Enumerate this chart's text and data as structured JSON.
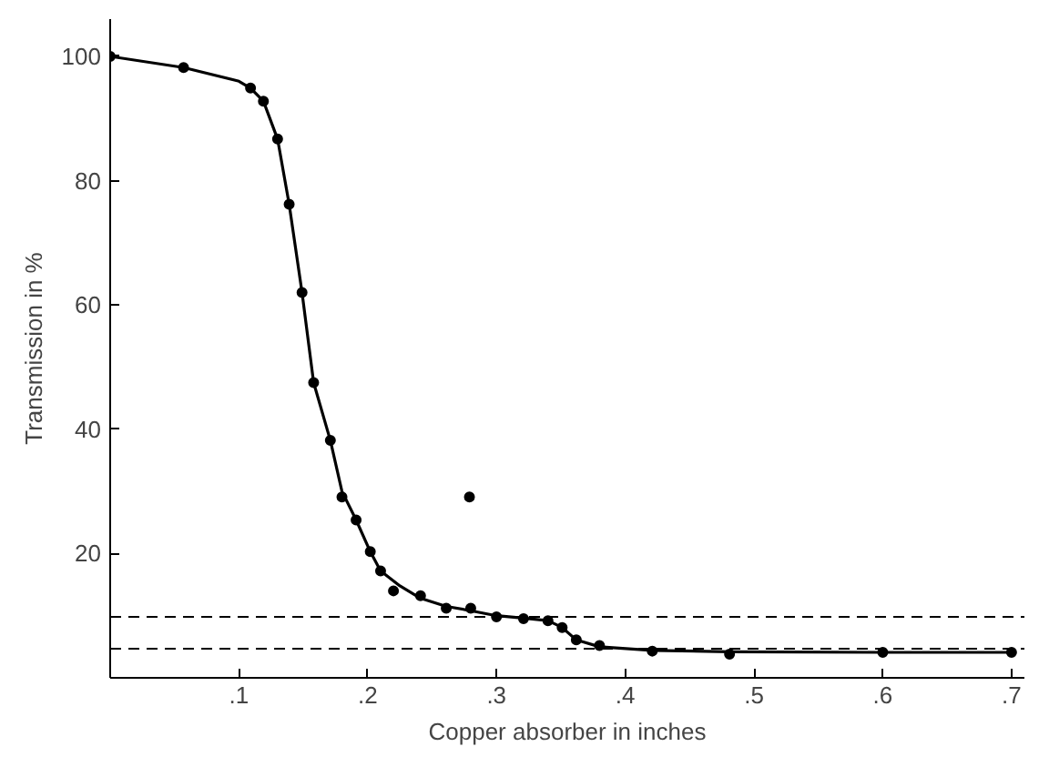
{
  "chart_data": {
    "type": "scatter",
    "xlabel": "Copper absorber in inches",
    "ylabel": "Transmission in %",
    "xlim": [
      0,
      0.71
    ],
    "ylim": [
      0,
      106
    ],
    "xticks": [
      {
        "value": 0.1,
        "label": ".1"
      },
      {
        "value": 0.2,
        "label": ".2"
      },
      {
        "value": 0.3,
        "label": ".3"
      },
      {
        "value": 0.4,
        "label": ".4"
      },
      {
        "value": 0.5,
        "label": ".5"
      },
      {
        "value": 0.6,
        "label": ".6"
      },
      {
        "value": 0.7,
        "label": ".7"
      }
    ],
    "yticks": [
      20,
      40,
      60,
      80,
      100
    ],
    "grid": false,
    "marker": "circle",
    "series": [
      {
        "color": "#000000",
        "x": [
          0,
          0.057,
          0.109,
          0.119,
          0.13,
          0.139,
          0.149,
          0.158,
          0.171,
          0.18,
          0.191,
          0.202,
          0.21,
          0.22,
          0.241,
          0.261,
          0.279,
          0.28,
          0.3,
          0.321,
          0.34,
          0.351,
          0.362,
          0.38,
          0.421,
          0.481,
          0.6,
          0.7
        ],
        "values": [
          100,
          98.2,
          94.9,
          92.8,
          86.7,
          76.2,
          62,
          47.5,
          38.2,
          29.1,
          25.4,
          20.3,
          17.2,
          14,
          13.2,
          11.2,
          29.1,
          11.2,
          9.8,
          9.5,
          9.2,
          8.1,
          6.1,
          5.2,
          4.3,
          3.8,
          4.1,
          4.1
        ]
      },
      {
        "type": "line",
        "color": "#000000",
        "marker": "none",
        "x": [
          0,
          0.057,
          0.1,
          0.109,
          0.119,
          0.13,
          0.139,
          0.149,
          0.158,
          0.171,
          0.18,
          0.191,
          0.202,
          0.21,
          0.225,
          0.241,
          0.261,
          0.28,
          0.3,
          0.321,
          0.34,
          0.351,
          0.362,
          0.38,
          0.421,
          0.481,
          0.6,
          0.7
        ],
        "values": [
          100,
          98.2,
          96,
          94.9,
          92.8,
          86.7,
          76.2,
          62,
          47.5,
          38.2,
          30,
          25.4,
          20.3,
          17.2,
          14.8,
          12.8,
          11.5,
          10.8,
          10,
          9.6,
          9.2,
          8.1,
          6.1,
          5.0,
          4.4,
          4.2,
          4.1,
          4.1
        ]
      }
    ],
    "ref_lines": [
      {
        "axis": "y",
        "value": 9.8,
        "line_style": "dashed"
      },
      {
        "axis": "y",
        "value": 4.7,
        "line_style": "dashed"
      }
    ]
  }
}
